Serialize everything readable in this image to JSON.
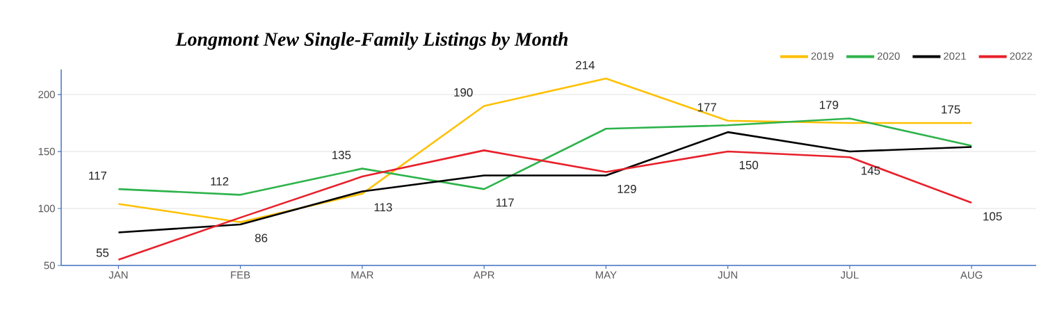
{
  "chart_data": {
    "type": "line",
    "title": "Longmont New Single-Family Listings by Month",
    "categories": [
      "JAN",
      "FEB",
      "MAR",
      "APR",
      "MAY",
      "JUN",
      "JUL",
      "AUG"
    ],
    "series": [
      {
        "name": "2019",
        "color": "#ffc000",
        "values": [
          104,
          88,
          113,
          190,
          214,
          177,
          175,
          175
        ],
        "value_labels": [
          null,
          null,
          "113",
          "190",
          "214",
          "177",
          null,
          "175"
        ]
      },
      {
        "name": "2020",
        "color": "#2eb34b",
        "values": [
          117,
          112,
          135,
          117,
          170,
          173,
          179,
          155
        ],
        "value_labels": [
          "117",
          "112",
          "135",
          "117",
          null,
          null,
          "179",
          null
        ]
      },
      {
        "name": "2021",
        "color": "#000000",
        "values": [
          79,
          86,
          115,
          129,
          129,
          167,
          150,
          154
        ],
        "value_labels": [
          null,
          "86",
          null,
          null,
          "129",
          null,
          null,
          null
        ]
      },
      {
        "name": "2022",
        "color": "#e8202a",
        "values": [
          55,
          92,
          128,
          151,
          132,
          150,
          145,
          105
        ],
        "value_labels": [
          "55",
          null,
          null,
          null,
          null,
          "150",
          "145",
          "105"
        ]
      }
    ],
    "ylim": [
      50,
      222
    ],
    "yticks": [
      50,
      100,
      150,
      200
    ],
    "grid": "y",
    "legend": "top right",
    "marker": "none",
    "line_style": "solid"
  }
}
